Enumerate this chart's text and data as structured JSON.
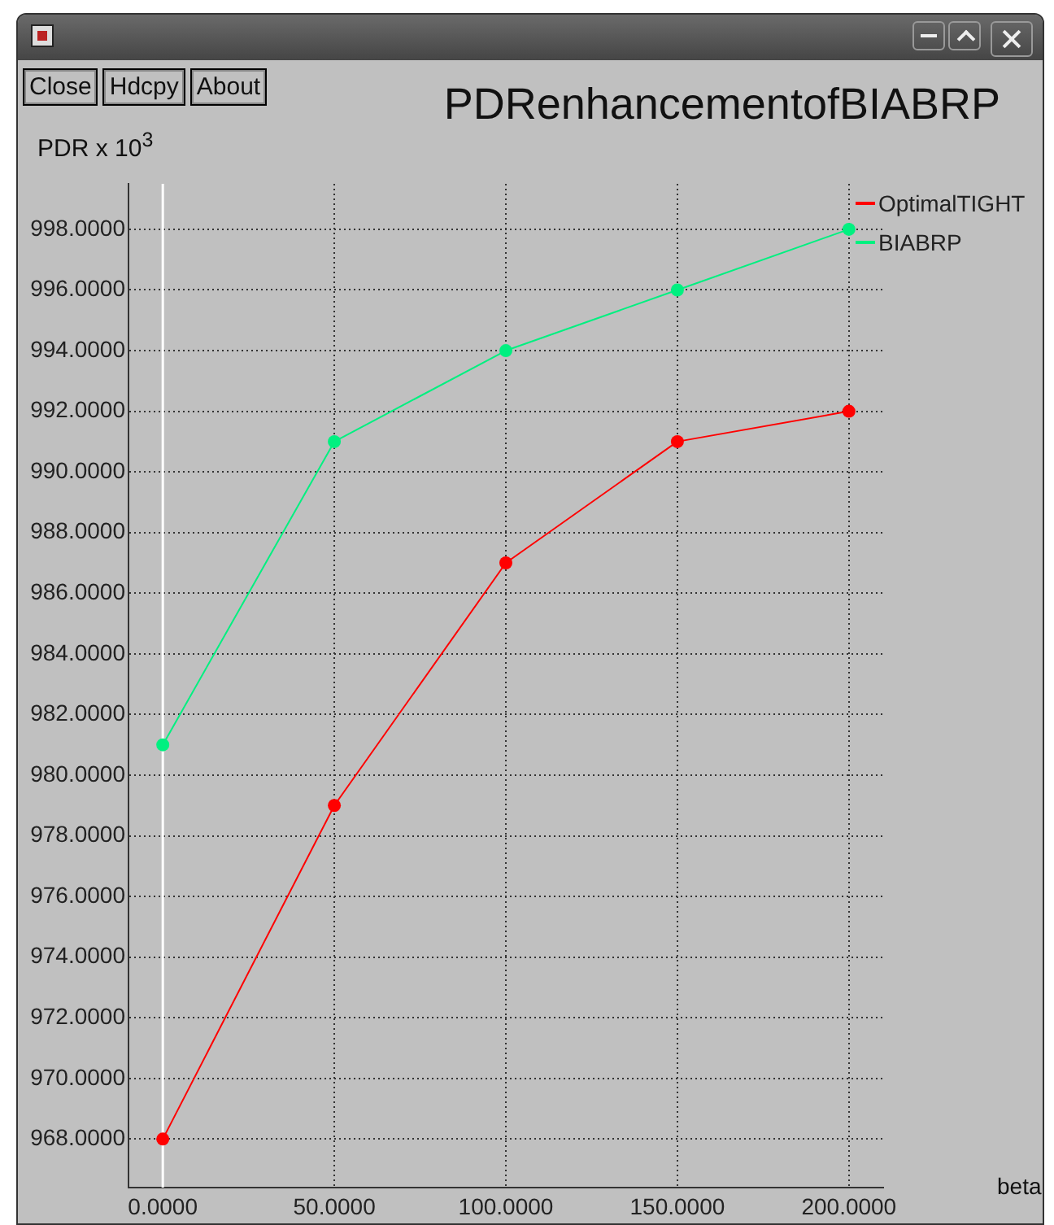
{
  "chart_data": {
    "type": "line",
    "title": "PDRenhancementofBIABRP",
    "ylabel": "PDR x 10$^{3}$",
    "xlabel": "beta",
    "annotations": [
      "Close",
      "Hdcpy",
      "About"
    ],
    "x": [
      0,
      50,
      100,
      150,
      200
    ],
    "series": [
      {
        "name": "OptimalTIGHT",
        "color": "#ff0000",
        "values": [
          968,
          979,
          987,
          991,
          992
        ]
      },
      {
        "name": "BIABRP",
        "color": "#00f080",
        "values": [
          981,
          991,
          994,
          996,
          998
        ]
      }
    ],
    "xlim": [
      -10,
      210
    ],
    "ylim": [
      966.4,
      999.5
    ],
    "xticks": [
      {
        "value": 0,
        "label": "0.0000"
      },
      {
        "value": 50,
        "label": "50.0000"
      },
      {
        "value": 100,
        "label": "100.0000"
      },
      {
        "value": 150,
        "label": "150.0000"
      },
      {
        "value": 200,
        "label": "200.0000"
      }
    ],
    "yticks": [
      {
        "value": 968,
        "label": "968.0000"
      },
      {
        "value": 970,
        "label": "970.0000"
      },
      {
        "value": 972,
        "label": "972.0000"
      },
      {
        "value": 974,
        "label": "974.0000"
      },
      {
        "value": 976,
        "label": "976.0000"
      },
      {
        "value": 978,
        "label": "978.0000"
      },
      {
        "value": 980,
        "label": "980.0000"
      },
      {
        "value": 982,
        "label": "982.0000"
      },
      {
        "value": 984,
        "label": "984.0000"
      },
      {
        "value": 986,
        "label": "986.0000"
      },
      {
        "value": 988,
        "label": "988.0000"
      },
      {
        "value": 990,
        "label": "990.0000"
      },
      {
        "value": 992,
        "label": "992.0000"
      },
      {
        "value": 994,
        "label": "994.0000"
      },
      {
        "value": 996,
        "label": "996.0000"
      },
      {
        "value": 998,
        "label": "998.0000"
      }
    ],
    "ref_lines": [
      {
        "axis": "x",
        "value": 0,
        "label": null,
        "color": "#ffffff"
      }
    ],
    "grid": true,
    "legend": "top right",
    "marker": "circle",
    "line_style": "solid"
  }
}
